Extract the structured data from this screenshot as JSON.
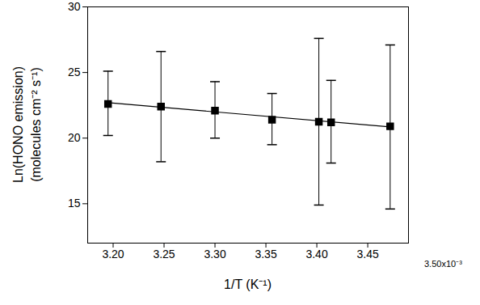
{
  "chart_data": {
    "type": "scatter",
    "x_label": "1/T (K⁻¹)",
    "y_label": [
      "Ln(HONO emission)",
      "(molecules cm⁻² s⁻¹)"
    ],
    "annotations": [
      "3.50x10⁻³"
    ],
    "x": [
      0.003195,
      0.003247,
      0.0033,
      0.003356,
      0.003402,
      0.003414,
      0.003472
    ],
    "values": [
      22.6,
      22.4,
      22.1,
      21.4,
      21.25,
      21.2,
      20.9
    ],
    "error_low": [
      20.2,
      18.2,
      20.0,
      19.5,
      14.9,
      18.1,
      14.6
    ],
    "error_high": [
      25.1,
      26.6,
      24.3,
      23.4,
      27.6,
      24.4,
      27.1
    ],
    "fit": {
      "x": [
        0.003195,
        0.003472
      ],
      "y": [
        22.7,
        20.85
      ]
    },
    "color": "#000000",
    "marker": "square",
    "xlim": [
      0.003175,
      0.00349
    ],
    "xticks": [
      {
        "value": 0.0032,
        "label": "3.20"
      },
      {
        "value": 0.00325,
        "label": "3.25"
      },
      {
        "value": 0.0033,
        "label": "3.30"
      },
      {
        "value": 0.00335,
        "label": "3.35"
      },
      {
        "value": 0.0034,
        "label": "3.40"
      },
      {
        "value": 0.00345,
        "label": "3.45"
      }
    ],
    "ylim": [
      12,
      30
    ],
    "yticks": [
      15,
      20,
      25,
      30
    ],
    "grid": false
  }
}
